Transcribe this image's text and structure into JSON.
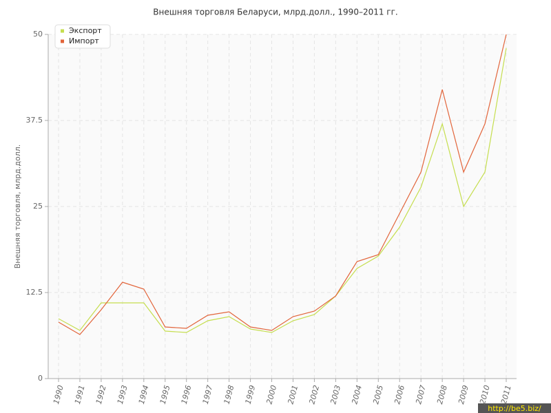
{
  "chart_data": {
    "type": "line",
    "title": "Внешняя торговля Беларуси, млрд.долл., 1990–2011 гг.",
    "y_label": "Внешняя торговля, млрд.долл.",
    "watermark": "http://be5.biz/",
    "categories": [
      "1990",
      "1991",
      "1992",
      "1993",
      "1994",
      "1995",
      "1996",
      "1997",
      "1998",
      "1999",
      "2000",
      "2001",
      "2002",
      "2003",
      "2004",
      "2005",
      "2006",
      "2007",
      "2008",
      "2009",
      "2010",
      "2011"
    ],
    "series": [
      {
        "name": "Экспорт",
        "color": "#c5de4e",
        "values": [
          8.7,
          7.0,
          11.0,
          11.0,
          11.0,
          6.9,
          6.7,
          8.4,
          9.0,
          7.2,
          6.7,
          8.4,
          9.3,
          12.0,
          16.0,
          17.8,
          22.0,
          27.8,
          37.0,
          25.0,
          30.0,
          48.0
        ]
      },
      {
        "name": "Импорт",
        "color": "#e2643a",
        "values": [
          8.2,
          6.4,
          10.0,
          14.0,
          13.0,
          7.5,
          7.3,
          9.2,
          9.7,
          7.5,
          7.0,
          9.0,
          9.8,
          12.0,
          17.0,
          18.0,
          24.0,
          30.0,
          42.0,
          30.0,
          37.0,
          50.0
        ]
      }
    ],
    "ylim": [
      0,
      50
    ],
    "yticks": [
      0,
      12.5,
      25,
      37.5,
      50
    ],
    "grid": true,
    "legend": "top-left"
  }
}
